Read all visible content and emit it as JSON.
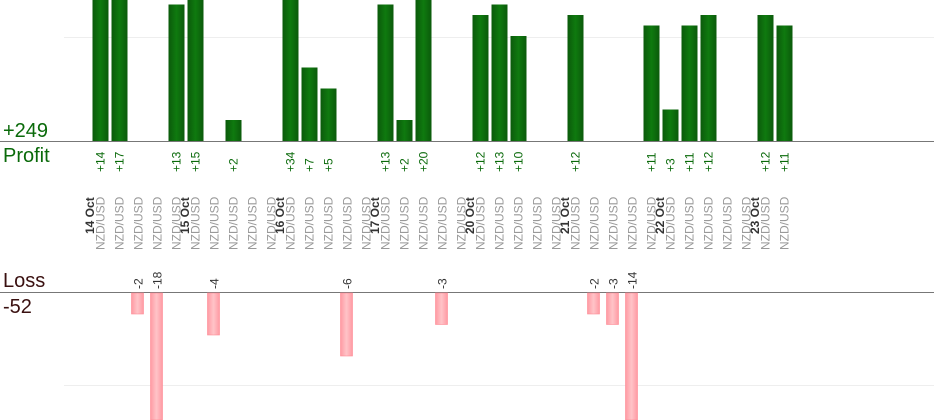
{
  "summary": {
    "profit_total": "+249",
    "profit_label": "Profit",
    "loss_label": "Loss",
    "loss_total": "-52"
  },
  "colors": {
    "profit_bar": "#0a6a0a",
    "profit_text": "#0a6a0a",
    "loss_bar": "#ffb3b8",
    "loss_text": "#333333",
    "symbol_text": "#999999",
    "date_text": "#333333"
  },
  "chart_data": {
    "type": "bar",
    "title": "",
    "xlabel": "",
    "ylabel": "",
    "grid": true,
    "categories": [
      {
        "date": "14 Oct",
        "symbols": [
          "NZD/USD",
          "NZD/USD",
          "NZD/USD",
          "NZD/USD",
          "NZD/USD"
        ]
      },
      {
        "date": "15 Oct",
        "symbols": [
          "NZD/USD",
          "NZD/USD",
          "NZD/USD",
          "NZD/USD",
          "NZD/USD"
        ]
      },
      {
        "date": "16 Oct",
        "symbols": [
          "NZD/USD",
          "NZD/USD",
          "NZD/USD",
          "NZD/USD",
          "NZD/USD"
        ]
      },
      {
        "date": "17 Oct",
        "symbols": [
          "NZD/USD",
          "NZD/USD",
          "NZD/USD",
          "NZD/USD",
          "NZD/USD"
        ]
      },
      {
        "date": "20 Oct",
        "symbols": [
          "NZD/USD",
          "NZD/USD",
          "NZD/USD",
          "NZD/USD",
          "NZD/USD"
        ]
      },
      {
        "date": "21 Oct",
        "symbols": [
          "NZD/USD",
          "NZD/USD",
          "NZD/USD",
          "NZD/USD",
          "NZD/USD"
        ]
      },
      {
        "date": "22 Oct",
        "symbols": [
          "NZD/USD",
          "NZD/USD",
          "NZD/USD",
          "NZD/USD",
          "NZD/USD"
        ]
      },
      {
        "date": "23 Oct",
        "symbols": [
          "NZD/USD",
          "NZD/USD"
        ]
      }
    ],
    "trades": [
      {
        "day": 0,
        "slot": 0,
        "value": 14,
        "label": "+14"
      },
      {
        "day": 0,
        "slot": 1,
        "value": 17,
        "label": "+17"
      },
      {
        "day": 0,
        "slot": 2,
        "value": -2,
        "label": "-2"
      },
      {
        "day": 0,
        "slot": 3,
        "value": -18,
        "label": "-18"
      },
      {
        "day": 0,
        "slot": 4,
        "value": 13,
        "label": "+13"
      },
      {
        "day": 1,
        "slot": 0,
        "value": 15,
        "label": "+15"
      },
      {
        "day": 1,
        "slot": 1,
        "value": -4,
        "label": "-4"
      },
      {
        "day": 1,
        "slot": 2,
        "value": 2,
        "label": "+2"
      },
      {
        "day": 2,
        "slot": 0,
        "value": 34,
        "label": "+34"
      },
      {
        "day": 2,
        "slot": 1,
        "value": 7,
        "label": "+7"
      },
      {
        "day": 2,
        "slot": 2,
        "value": 5,
        "label": "+5"
      },
      {
        "day": 2,
        "slot": 3,
        "value": -6,
        "label": "-6"
      },
      {
        "day": 3,
        "slot": 0,
        "value": 13,
        "label": "+13"
      },
      {
        "day": 3,
        "slot": 1,
        "value": 2,
        "label": "+2"
      },
      {
        "day": 3,
        "slot": 2,
        "value": 20,
        "label": "+20"
      },
      {
        "day": 3,
        "slot": 3,
        "value": -3,
        "label": "-3"
      },
      {
        "day": 4,
        "slot": 0,
        "value": 12,
        "label": "+12"
      },
      {
        "day": 4,
        "slot": 1,
        "value": 13,
        "label": "+13"
      },
      {
        "day": 4,
        "slot": 2,
        "value": 10,
        "label": "+10"
      },
      {
        "day": 5,
        "slot": 0,
        "value": 12,
        "label": "+12"
      },
      {
        "day": 5,
        "slot": 1,
        "value": -2,
        "label": "-2"
      },
      {
        "day": 5,
        "slot": 2,
        "value": -3,
        "label": "-3"
      },
      {
        "day": 5,
        "slot": 3,
        "value": -14,
        "label": "-14"
      },
      {
        "day": 5,
        "slot": 4,
        "value": 11,
        "label": "+11"
      },
      {
        "day": 6,
        "slot": 0,
        "value": 3,
        "label": "+3"
      },
      {
        "day": 6,
        "slot": 1,
        "value": 11,
        "label": "+11"
      },
      {
        "day": 6,
        "slot": 2,
        "value": 12,
        "label": "+12"
      },
      {
        "day": 7,
        "slot": 0,
        "value": 12,
        "label": "+12"
      },
      {
        "day": 7,
        "slot": 1,
        "value": 11,
        "label": "+11"
      }
    ]
  }
}
